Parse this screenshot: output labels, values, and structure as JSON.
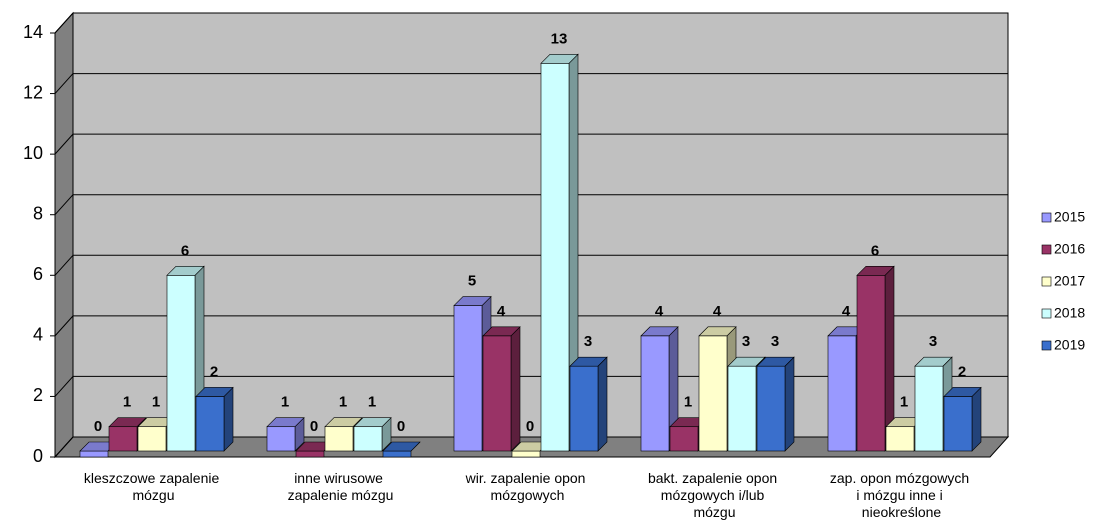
{
  "chart_data": {
    "type": "bar3d",
    "categories": [
      "kleszczowe zapalenie mózgu",
      "inne wirusowe zapalenie mózgu",
      "wir. zapalenie opon mózgowych",
      "bakt. zapalenie opon mózgowych i/lub mózgu",
      "zap. opon mózgowych i mózgu inne i nieokreślone"
    ],
    "series": [
      {
        "name": "2015",
        "color": "#9999ff",
        "values": [
          0,
          1,
          5,
          4,
          4
        ]
      },
      {
        "name": "2016",
        "color": "#993366",
        "values": [
          1,
          0,
          4,
          1,
          6
        ]
      },
      {
        "name": "2017",
        "color": "#ffffcc",
        "values": [
          1,
          1,
          0,
          4,
          1
        ]
      },
      {
        "name": "2018",
        "color": "#ccffff",
        "values": [
          6,
          1,
          13,
          3,
          3
        ]
      },
      {
        "name": "2019",
        "color": "#3a6fcc",
        "values": [
          2,
          0,
          3,
          3,
          2
        ]
      }
    ],
    "ylim": [
      0,
      14
    ],
    "yticks": [
      0,
      2,
      4,
      6,
      8,
      10,
      12,
      14
    ],
    "grid": true,
    "legend": "right"
  }
}
